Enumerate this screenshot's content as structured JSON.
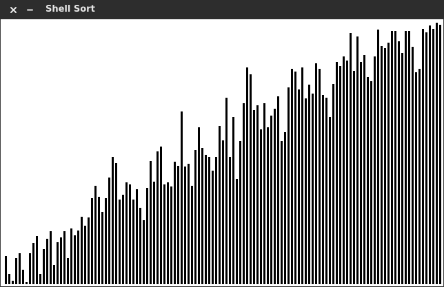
{
  "window": {
    "title": "Shell Sort"
  },
  "chart_data": {
    "type": "bar",
    "color": "#000000",
    "ylim": [
      0,
      385
    ],
    "values": [
      41,
      15,
      5,
      38,
      45,
      21,
      3,
      45,
      60,
      70,
      15,
      51,
      66,
      77,
      28,
      61,
      68,
      77,
      38,
      81,
      71,
      78,
      98,
      85,
      97,
      125,
      143,
      127,
      105,
      125,
      155,
      185,
      176,
      123,
      130,
      148,
      145,
      123,
      138,
      111,
      93,
      140,
      179,
      149,
      193,
      200,
      145,
      148,
      142,
      178,
      172,
      251,
      171,
      175,
      143,
      195,
      228,
      198,
      188,
      185,
      165,
      185,
      230,
      209,
      271,
      185,
      243,
      153,
      208,
      263,
      315,
      305,
      253,
      260,
      225,
      263,
      228,
      245,
      255,
      273,
      208,
      221,
      286,
      313,
      309,
      283,
      315,
      270,
      290,
      277,
      321,
      313,
      275,
      271,
      243,
      291,
      323,
      317,
      331,
      325,
      365,
      310,
      360,
      323,
      333,
      301,
      295,
      331,
      370,
      346,
      343,
      351,
      368,
      368,
      353,
      336,
      368,
      368,
      345,
      308,
      313,
      371,
      366,
      376,
      371,
      380,
      377
    ]
  }
}
